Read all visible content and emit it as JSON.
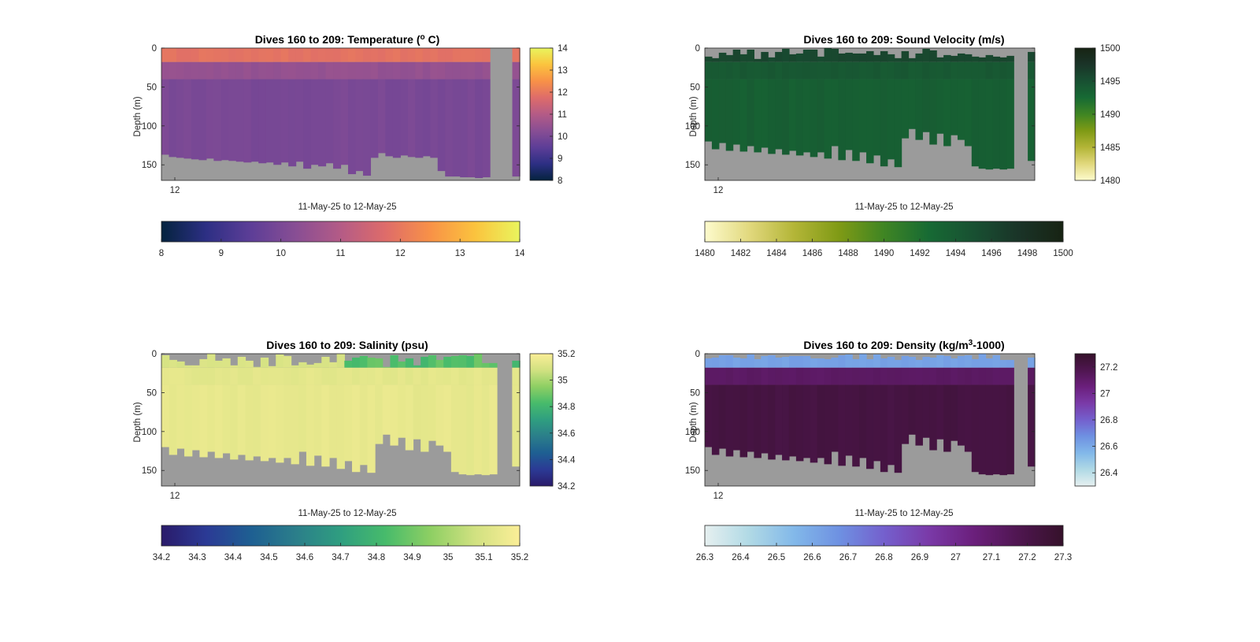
{
  "colors": {
    "background": "#ffffff",
    "no_data": "#9b9b9b",
    "axis": "#262626"
  },
  "chart_data": [
    {
      "type": "heatmap",
      "title_main": "Dives 160 to 209: Temperature (",
      "title_sup": "o",
      "title_end": " C)",
      "ylabel": "Depth (m)",
      "xlabel": "11-May-25 to 12-May-25",
      "xtick_labels": [
        "12"
      ],
      "yticks": [
        0,
        50,
        100,
        150
      ],
      "ylim": [
        0,
        170
      ],
      "colormap": "thermal",
      "clim": [
        8,
        14
      ],
      "colorbar_ticks": [
        "8",
        "9",
        "10",
        "11",
        "12",
        "13",
        "14"
      ],
      "colorbar_values": [
        8,
        9,
        10,
        11,
        12,
        13,
        14
      ],
      "hcolorbar_ticks": [
        "8",
        "9",
        "10",
        "11",
        "12",
        "13",
        "14"
      ],
      "hcolorbar_values": [
        8,
        9,
        10,
        11,
        12,
        13,
        14
      ],
      "profile": {
        "surface": 11.9,
        "transition": 10.45,
        "deep": 10.0
      },
      "gap_dives": [
        44,
        45,
        46
      ],
      "start_depth_max": 0,
      "max_depths": [
        137,
        140,
        141,
        142,
        143,
        144,
        142,
        145,
        144,
        145,
        146,
        147,
        146,
        148,
        147,
        150,
        147,
        152,
        146,
        155,
        150,
        152,
        148,
        155,
        150,
        162,
        158,
        164,
        141,
        135,
        139,
        141,
        138,
        140,
        141,
        139,
        141,
        158,
        165,
        165,
        166,
        166,
        167,
        166,
        0,
        0,
        0,
        165
      ],
      "grid": false
    },
    {
      "type": "heatmap",
      "title_main": "Dives 160 to 209: Sound Velocity (m/s)",
      "title_sup": "",
      "title_end": "",
      "ylabel": "Depth (m)",
      "xlabel": "11-May-25 to 12-May-25",
      "xtick_labels": [
        "12"
      ],
      "yticks": [
        0,
        50,
        100,
        150
      ],
      "ylim": [
        0,
        170
      ],
      "colormap": "speed",
      "clim": [
        1480,
        1500
      ],
      "colorbar_ticks": [
        "1480",
        "1485",
        "1490",
        "1495",
        "1500"
      ],
      "colorbar_values": [
        1480,
        1485,
        1490,
        1495,
        1500
      ],
      "hcolorbar_ticks": [
        "1480",
        "1482",
        "1484",
        "1486",
        "1488",
        "1490",
        "1492",
        "1494",
        "1496",
        "1498",
        "1500"
      ],
      "hcolorbar_values": [
        1480,
        1482,
        1484,
        1486,
        1488,
        1490,
        1492,
        1494,
        1496,
        1498,
        1500
      ],
      "profile": {
        "surface": 1495.8,
        "transition": 1494.2,
        "deep": 1493.6
      },
      "gap_dives": [
        44,
        45
      ],
      "start_depth_max": 15,
      "max_depths": [
        120,
        130,
        122,
        132,
        124,
        133,
        126,
        134,
        128,
        136,
        130,
        137,
        132,
        138,
        134,
        140,
        134,
        142,
        126,
        144,
        131,
        145,
        134,
        148,
        138,
        152,
        143,
        153,
        116,
        104,
        118,
        108,
        124,
        110,
        126,
        112,
        118,
        126,
        152,
        155,
        156,
        155,
        156,
        155,
        0,
        0,
        145
      ],
      "grid": false
    },
    {
      "type": "heatmap",
      "title_main": "Dives 160 to 209: Salinity (psu)",
      "title_sup": "",
      "title_end": "",
      "ylabel": "Depth (m)",
      "xlabel": "11-May-25 to 12-May-25",
      "xtick_labels": [
        "12"
      ],
      "yticks": [
        0,
        50,
        100,
        150
      ],
      "ylim": [
        0,
        170
      ],
      "colormap": "haline",
      "clim": [
        34.2,
        35.2
      ],
      "colorbar_ticks": [
        "34.2",
        "34.4",
        "34.6",
        "34.8",
        "35",
        "35.2"
      ],
      "colorbar_values": [
        34.2,
        34.4,
        34.6,
        34.8,
        35.0,
        35.2
      ],
      "hcolorbar_ticks": [
        "34.2",
        "34.3",
        "34.4",
        "34.5",
        "34.6",
        "34.7",
        "34.8",
        "34.9",
        "35",
        "35.1",
        "35.2"
      ],
      "hcolorbar_values": [
        34.2,
        34.3,
        34.4,
        34.5,
        34.6,
        34.7,
        34.8,
        34.9,
        35.0,
        35.1,
        35.2
      ],
      "profile": {
        "surface": 35.1,
        "transition": 35.13,
        "deep": 35.14
      },
      "surface_fresh_from_dive": 24,
      "surface_fresh_value": 34.85,
      "gap_dives": [
        44,
        45
      ],
      "start_depth_max": 17,
      "max_depths": [
        120,
        130,
        122,
        132,
        124,
        133,
        126,
        134,
        128,
        136,
        130,
        137,
        132,
        138,
        134,
        140,
        134,
        142,
        126,
        144,
        131,
        145,
        134,
        148,
        138,
        152,
        143,
        153,
        116,
        104,
        118,
        108,
        124,
        110,
        126,
        112,
        118,
        126,
        152,
        155,
        156,
        155,
        156,
        155,
        0,
        0,
        145
      ],
      "grid": false
    },
    {
      "type": "heatmap",
      "title_main": "Dives 160 to 209: Density (kg/m",
      "title_sup": "3",
      "title_end": "-1000)",
      "ylabel": "Depth (m)",
      "xlabel": "11-May-25 to 12-May-25",
      "xtick_labels": [
        "12"
      ],
      "yticks": [
        0,
        50,
        100,
        150
      ],
      "ylim": [
        0,
        170
      ],
      "colormap": "dense",
      "clim": [
        26.3,
        27.3
      ],
      "colorbar_ticks": [
        "26.4",
        "26.6",
        "26.8",
        "27",
        "27.2"
      ],
      "colorbar_values": [
        26.4,
        26.6,
        26.8,
        27.0,
        27.2
      ],
      "hcolorbar_ticks": [
        "26.3",
        "26.4",
        "26.5",
        "26.6",
        "26.7",
        "26.8",
        "26.9",
        "27",
        "27.1",
        "27.2",
        "27.3"
      ],
      "hcolorbar_values": [
        26.3,
        26.4,
        26.5,
        26.6,
        26.7,
        26.8,
        26.9,
        27.0,
        27.1,
        27.2,
        27.3
      ],
      "profile": {
        "surface": 26.62,
        "transition": 27.12,
        "deep": 27.22
      },
      "gap_dives": [
        44,
        45
      ],
      "start_depth_max": 8,
      "max_depths": [
        120,
        130,
        122,
        132,
        124,
        133,
        126,
        134,
        128,
        136,
        130,
        137,
        132,
        138,
        134,
        140,
        134,
        142,
        126,
        144,
        131,
        145,
        134,
        148,
        138,
        152,
        143,
        153,
        116,
        104,
        118,
        108,
        124,
        110,
        126,
        112,
        118,
        126,
        152,
        155,
        156,
        155,
        156,
        155,
        0,
        0,
        145
      ],
      "grid": false
    }
  ]
}
